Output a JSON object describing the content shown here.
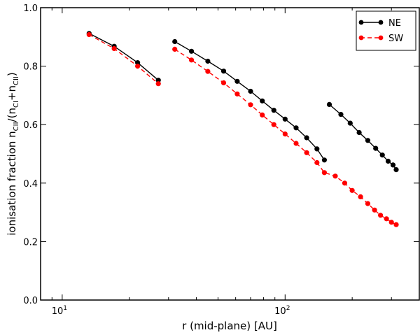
{
  "chart_data": {
    "type": "line",
    "xlabel": "r (mid-plane) [AU]",
    "ylabel_parts": {
      "main": "ionisation fraction n",
      "sub1": "CII",
      "mid": "/(n",
      "sub2": "CI",
      "plus": "+n",
      "sub3": "CII",
      "close": ")"
    },
    "xscale": "log",
    "xlim": [
      8,
      400
    ],
    "ylim": [
      0.0,
      1.0
    ],
    "x_ticks": [
      {
        "value": 10,
        "base": "10",
        "exp": "1"
      },
      {
        "value": 100,
        "base": "10",
        "exp": "2"
      }
    ],
    "y_ticks": [
      {
        "value": 0.0,
        "label": "0.0"
      },
      {
        "value": 0.2,
        "label": "0.2"
      },
      {
        "value": 0.4,
        "label": "0.4"
      },
      {
        "value": 0.6,
        "label": "0.6"
      },
      {
        "value": 0.8,
        "label": "0.8"
      },
      {
        "value": 1.0,
        "label": "1.0"
      }
    ],
    "legend_position": "top-right",
    "series": [
      {
        "name": "NE",
        "color": "#000000",
        "linestyle": "solid",
        "segments": [
          [
            [
              13.2,
              0.912
            ],
            [
              17.1,
              0.868
            ],
            [
              21.8,
              0.812
            ],
            [
              27.0,
              0.752
            ]
          ],
          [
            [
              32.0,
              0.884
            ],
            [
              38.0,
              0.851
            ],
            [
              45.0,
              0.817
            ],
            [
              53.0,
              0.783
            ],
            [
              61.0,
              0.748
            ],
            [
              70.0,
              0.714
            ],
            [
              79.0,
              0.681
            ],
            [
              89.0,
              0.649
            ],
            [
              100.0,
              0.619
            ],
            [
              112.0,
              0.589
            ],
            [
              125.0,
              0.555
            ],
            [
              139.0,
              0.517
            ],
            [
              150.0,
              0.479
            ]
          ],
          [
            [
              158.0,
              0.669
            ],
            [
              178.0,
              0.635
            ],
            [
              196.0,
              0.605
            ],
            [
              215.0,
              0.573
            ],
            [
              235.0,
              0.546
            ],
            [
              255.0,
              0.519
            ],
            [
              273.0,
              0.496
            ],
            [
              290.0,
              0.475
            ],
            [
              305.0,
              0.462
            ],
            [
              315.0,
              0.446
            ]
          ]
        ]
      },
      {
        "name": "SW",
        "color": "#ff0000",
        "linestyle": "dashed",
        "segments": [
          [
            [
              13.2,
              0.908
            ],
            [
              17.1,
              0.86
            ],
            [
              21.8,
              0.8
            ],
            [
              27.0,
              0.74
            ]
          ],
          [
            [
              32.0,
              0.858
            ],
            [
              38.0,
              0.821
            ],
            [
              45.0,
              0.782
            ],
            [
              53.0,
              0.743
            ],
            [
              61.0,
              0.705
            ],
            [
              70.0,
              0.668
            ],
            [
              79.0,
              0.633
            ],
            [
              89.0,
              0.6
            ],
            [
              100.0,
              0.568
            ],
            [
              112.0,
              0.536
            ],
            [
              125.0,
              0.504
            ],
            [
              139.0,
              0.47
            ],
            [
              150.0,
              0.436
            ],
            [
              168.0,
              0.424
            ],
            [
              185.0,
              0.4
            ],
            [
              200.0,
              0.375
            ],
            [
              218.0,
              0.353
            ],
            [
              235.0,
              0.33
            ],
            [
              252.0,
              0.308
            ],
            [
              268.0,
              0.29
            ],
            [
              285.0,
              0.278
            ],
            [
              300.0,
              0.266
            ],
            [
              315.0,
              0.258
            ]
          ]
        ]
      }
    ]
  }
}
